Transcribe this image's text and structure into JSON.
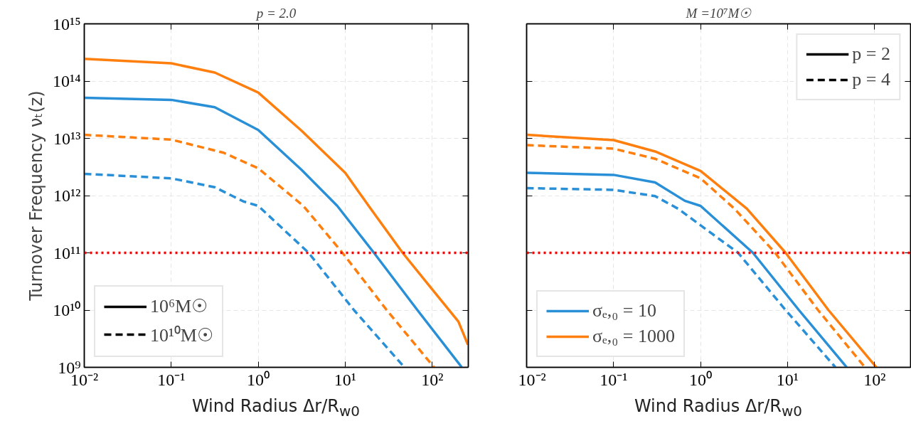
{
  "chart_data": [
    {
      "type": "line",
      "title": "p = 2.0",
      "xlabel": "Wind Radius Δr/R$_{w0}$",
      "ylabel": "Turnover Frequency νₜ(z)",
      "log": "xy",
      "grid": true,
      "legend": "bottom left",
      "tick_labels": true,
      "xlim": [
        0.01,
        260
      ],
      "ylim": [
        1000000000.0,
        1000000000000000.0
      ],
      "xticks": [
        {
          "value": 0.01,
          "label": "10⁻²"
        },
        {
          "value": 0.1,
          "label": "10⁻¹"
        },
        {
          "value": 1,
          "label": "10⁰"
        },
        {
          "value": 10,
          "label": "10¹"
        },
        {
          "value": 100,
          "label": "10²"
        }
      ],
      "yticks": [
        {
          "value": 1000000000.0,
          "label": "10⁹"
        },
        {
          "value": 10000000000.0,
          "label": "10¹⁰"
        },
        {
          "value": 100000000000.0,
          "label": "10¹¹"
        },
        {
          "value": 1000000000000.0,
          "label": "10¹²"
        },
        {
          "value": 10000000000000.0,
          "label": "10¹³"
        },
        {
          "value": 100000000000000.0,
          "label": "10¹⁴"
        },
        {
          "value": 1000000000000000.0,
          "label": "10¹⁵"
        }
      ],
      "ref_lines": [
        {
          "axis": "y",
          "value": 100000000000.0,
          "color": "#ff0000",
          "line_style": "dotted"
        }
      ],
      "series": [
        {
          "color": "#ff7f0e",
          "line_style": "solid",
          "x": [
            0.01,
            0.1,
            0.316,
            1,
            3.16,
            10,
            18.6,
            45.7,
            100,
            200,
            257
          ],
          "values": [
            245000000000000.0,
            204000000000000.0,
            141000000000000.0,
            63000000000000.0,
            13500000000000.0,
            2500000000000.0,
            660000000000.0,
            100000000000.0,
            23000000000.0,
            6300000000.0,
            2500000000.0
          ]
        },
        {
          "color": "#2990d8",
          "line_style": "solid",
          "x": [
            0.01,
            0.1,
            0.316,
            1,
            3.16,
            8.1,
            21.4,
            67.6,
            219
          ],
          "values": [
            51000000000000.0,
            47000000000000.0,
            35000000000000.0,
            14000000000000.0,
            2800000000000.0,
            660000000000.0,
            100000000000.0,
            10000000000.0,
            1000000000.0
          ]
        },
        {
          "color": "#ff7f0e",
          "line_style": "dashed",
          "x": [
            0.01,
            0.1,
            0.4,
            1,
            3.3,
            9.3,
            30,
            105
          ],
          "values": [
            11500000000000.0,
            9500000000000.0,
            5600000000000.0,
            3000000000000.0,
            660000000000.0,
            100000000000.0,
            10000000000.0,
            1000000000.0
          ]
        },
        {
          "color": "#2990d8",
          "line_style": "dashed",
          "x": [
            0.01,
            0.1,
            0.316,
            0.676,
            1,
            3.8,
            12.6,
            47.9
          ],
          "values": [
            2400000000000.0,
            2000000000000.0,
            1400000000000.0,
            790000000000.0,
            660000000000.0,
            100000000000.0,
            10000000000.0,
            1000000000.0
          ]
        },
        {
          "name": "10⁶M☉",
          "color": "#000000",
          "line_style": "solid"
        },
        {
          "name": "10¹⁰M☉",
          "color": "#000000",
          "line_style": "dashed"
        }
      ]
    },
    {
      "type": "line",
      "title": "M =10⁷M☉",
      "xlabel": "Wind Radius Δr/R$_{w0}$",
      "log": "xy",
      "grid": true,
      "legend": [
        "bottom left",
        "top right"
      ],
      "tick_labels": "x",
      "xlim": [
        0.01,
        260
      ],
      "ylim": [
        1000000000.0,
        1000000000000000.0
      ],
      "xticks": [
        {
          "value": 0.01,
          "label": "10⁻²"
        },
        {
          "value": 0.1,
          "label": "10⁻¹"
        },
        {
          "value": 1,
          "label": "10⁰"
        },
        {
          "value": 10,
          "label": "10¹"
        },
        {
          "value": 100,
          "label": "10²"
        }
      ],
      "yticks": [
        {
          "value": 1000000000.0,
          "label": null
        },
        {
          "value": 10000000000.0,
          "label": null
        },
        {
          "value": 100000000000.0,
          "label": null
        },
        {
          "value": 1000000000000.0,
          "label": null
        },
        {
          "value": 10000000000000.0,
          "label": null
        },
        {
          "value": 100000000000000.0,
          "label": null
        },
        {
          "value": 1000000000000000.0,
          "label": null
        }
      ],
      "ref_lines": [
        {
          "axis": "y",
          "value": 100000000000.0,
          "color": "#ff0000",
          "line_style": "dotted"
        }
      ],
      "series": [
        {
          "name": "σₑ,₀ = 10",
          "color": "#2990d8",
          "line_style": "solid",
          "x": [
            0.01,
            0.1,
            0.3,
            0.66,
            1,
            4.0,
            13.5,
            47.9
          ],
          "values": [
            2500000000000.0,
            2300000000000.0,
            1700000000000.0,
            810000000000.0,
            660000000000.0,
            100000000000.0,
            10000000000.0,
            1000000000.0
          ]
        },
        {
          "name": "σₑ,₀ = 1000",
          "color": "#ff7f0e",
          "line_style": "solid",
          "x": [
            0.01,
            0.1,
            0.3,
            1,
            3.4,
            9.5,
            29.5,
            105
          ],
          "values": [
            11500000000000.0,
            9300000000000.0,
            5900000000000.0,
            2700000000000.0,
            590000000000.0,
            100000000000.0,
            10000000000.0,
            1000000000.0
          ]
        },
        {
          "color": "#2990d8",
          "line_style": "dashed",
          "x": [
            0.01,
            0.1,
            0.3,
            0.55,
            2.7,
            9.5,
            35.5
          ],
          "values": [
            1350000000000.0,
            1260000000000.0,
            980000000000.0,
            590000000000.0,
            100000000000.0,
            10000000000.0,
            1000000000.0
          ]
        },
        {
          "color": "#ff7f0e",
          "line_style": "dashed",
          "x": [
            0.01,
            0.1,
            0.3,
            1,
            2.45,
            7.2,
            22.4,
            77.6
          ],
          "values": [
            7600000000000.0,
            6600000000000.0,
            4400000000000.0,
            2000000000000.0,
            590000000000.0,
            100000000000.0,
            10000000000.0,
            1000000000.0
          ]
        },
        {
          "name": "p = 2",
          "color": "#000000",
          "line_style": "solid"
        },
        {
          "name": "p = 4",
          "color": "#000000",
          "line_style": "dashed"
        }
      ]
    }
  ]
}
